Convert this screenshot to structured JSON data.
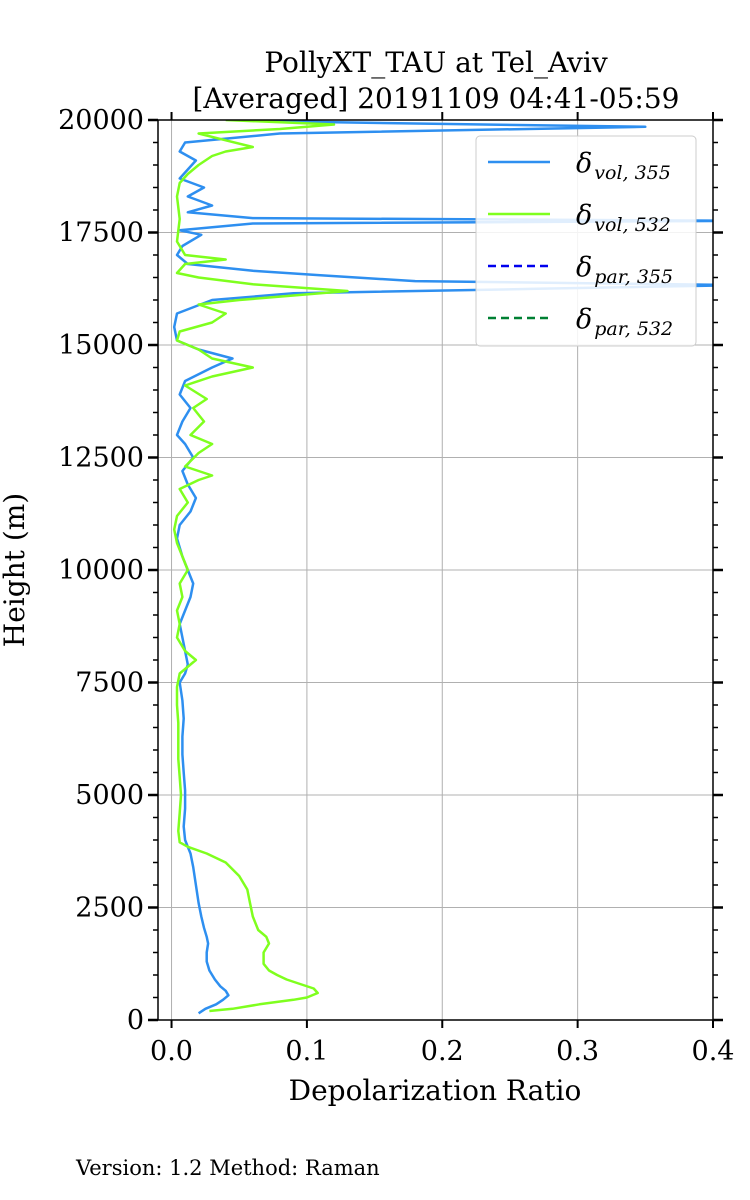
{
  "chart_data": {
    "type": "line",
    "title_line1": "PollyXT_TAU at Tel_Aviv",
    "title_line2": "[Averaged] 20191109 04:41-05:59",
    "xlabel": "Depolarization Ratio",
    "ylabel": "Height (m)",
    "xlim": [
      -0.01,
      0.4
    ],
    "ylim": [
      0,
      20000
    ],
    "xticks": [
      "0.0",
      "0.1",
      "0.2",
      "0.3",
      "0.4"
    ],
    "xtick_values": [
      0.0,
      0.1,
      0.2,
      0.3,
      0.4
    ],
    "yticks": [
      "0",
      "2500",
      "5000",
      "7500",
      "10000",
      "12500",
      "15000",
      "17500",
      "20000"
    ],
    "ytick_values": [
      0,
      2500,
      5000,
      7500,
      10000,
      12500,
      15000,
      17500,
      20000
    ],
    "grid": true,
    "legend_position": "top-right",
    "series": [
      {
        "name": "δvol,355",
        "name_main": "δ",
        "name_sub": "vol, 355",
        "color": "#2e8ff0",
        "dash": "solid",
        "points": [
          [
            0.02,
            150
          ],
          [
            0.025,
            250
          ],
          [
            0.033,
            350
          ],
          [
            0.038,
            450
          ],
          [
            0.042,
            550
          ],
          [
            0.04,
            650
          ],
          [
            0.036,
            750
          ],
          [
            0.032,
            900
          ],
          [
            0.028,
            1100
          ],
          [
            0.026,
            1300
          ],
          [
            0.026,
            1500
          ],
          [
            0.027,
            1700
          ],
          [
            0.026,
            1850
          ],
          [
            0.024,
            2050
          ],
          [
            0.022,
            2300
          ],
          [
            0.02,
            2600
          ],
          [
            0.018,
            3000
          ],
          [
            0.016,
            3400
          ],
          [
            0.014,
            3700
          ],
          [
            0.012,
            3850
          ],
          [
            0.01,
            4000
          ],
          [
            0.009,
            4300
          ],
          [
            0.01,
            4700
          ],
          [
            0.01,
            5100
          ],
          [
            0.009,
            5500
          ],
          [
            0.008,
            5900
          ],
          [
            0.008,
            6300
          ],
          [
            0.009,
            6700
          ],
          [
            0.008,
            7100
          ],
          [
            0.006,
            7500
          ],
          [
            0.01,
            7700
          ],
          [
            0.012,
            7900
          ],
          [
            0.01,
            8200
          ],
          [
            0.008,
            8500
          ],
          [
            0.006,
            8800
          ],
          [
            0.01,
            9100
          ],
          [
            0.014,
            9400
          ],
          [
            0.016,
            9700
          ],
          [
            0.012,
            10000
          ],
          [
            0.008,
            10300
          ],
          [
            0.004,
            10700
          ],
          [
            0.006,
            11000
          ],
          [
            0.014,
            11300
          ],
          [
            0.018,
            11600
          ],
          [
            0.012,
            11900
          ],
          [
            0.008,
            12200
          ],
          [
            0.016,
            12500
          ],
          [
            0.01,
            12800
          ],
          [
            0.004,
            13000
          ],
          [
            0.008,
            13300
          ],
          [
            0.014,
            13600
          ],
          [
            0.006,
            13900
          ],
          [
            0.01,
            14200
          ],
          [
            0.03,
            14500
          ],
          [
            0.045,
            14700
          ],
          [
            0.02,
            14900
          ],
          [
            0.004,
            15100
          ],
          [
            0.002,
            15400
          ],
          [
            0.004,
            15700
          ],
          [
            0.03,
            16000
          ],
          [
            0.09,
            16150
          ],
          [
            0.27,
            16250
          ],
          [
            0.42,
            16330
          ],
          [
            0.18,
            16420
          ],
          [
            0.11,
            16550
          ],
          [
            0.06,
            16650
          ],
          [
            0.012,
            16800
          ],
          [
            0.004,
            17000
          ],
          [
            0.008,
            17200
          ],
          [
            0.022,
            17450
          ],
          [
            0.006,
            17550
          ],
          [
            0.06,
            17700
          ],
          [
            0.42,
            17760
          ],
          [
            0.06,
            17820
          ],
          [
            0.012,
            17950
          ],
          [
            0.03,
            18100
          ],
          [
            0.012,
            18300
          ],
          [
            0.024,
            18500
          ],
          [
            0.006,
            18700
          ],
          [
            0.012,
            18900
          ],
          [
            0.018,
            19100
          ],
          [
            0.006,
            19300
          ],
          [
            0.01,
            19500
          ],
          [
            0.08,
            19700
          ],
          [
            0.35,
            19850
          ],
          [
            0.12,
            19950
          ],
          [
            0.05,
            20000
          ]
        ]
      },
      {
        "name": "δvol,532",
        "name_main": "δ",
        "name_sub": "vol, 532",
        "color": "#7fff1e",
        "dash": "solid",
        "points": [
          [
            0.028,
            200
          ],
          [
            0.045,
            250
          ],
          [
            0.065,
            350
          ],
          [
            0.09,
            450
          ],
          [
            0.1,
            500
          ],
          [
            0.108,
            600
          ],
          [
            0.105,
            700
          ],
          [
            0.095,
            800
          ],
          [
            0.085,
            900
          ],
          [
            0.078,
            1000
          ],
          [
            0.072,
            1100
          ],
          [
            0.068,
            1250
          ],
          [
            0.068,
            1500
          ],
          [
            0.072,
            1700
          ],
          [
            0.07,
            1850
          ],
          [
            0.064,
            2000
          ],
          [
            0.06,
            2300
          ],
          [
            0.058,
            2600
          ],
          [
            0.056,
            2900
          ],
          [
            0.05,
            3200
          ],
          [
            0.04,
            3500
          ],
          [
            0.026,
            3700
          ],
          [
            0.012,
            3850
          ],
          [
            0.006,
            3950
          ],
          [
            0.005,
            4200
          ],
          [
            0.006,
            4600
          ],
          [
            0.007,
            5000
          ],
          [
            0.006,
            5400
          ],
          [
            0.005,
            5800
          ],
          [
            0.005,
            6200
          ],
          [
            0.005,
            6600
          ],
          [
            0.004,
            7000
          ],
          [
            0.004,
            7400
          ],
          [
            0.006,
            7700
          ],
          [
            0.014,
            7900
          ],
          [
            0.018,
            8000
          ],
          [
            0.01,
            8200
          ],
          [
            0.004,
            8500
          ],
          [
            0.006,
            8800
          ],
          [
            0.004,
            9100
          ],
          [
            0.008,
            9400
          ],
          [
            0.006,
            9700
          ],
          [
            0.012,
            10000
          ],
          [
            0.008,
            10300
          ],
          [
            0.004,
            10600
          ],
          [
            0.002,
            10900
          ],
          [
            0.004,
            11200
          ],
          [
            0.012,
            11500
          ],
          [
            0.006,
            11800
          ],
          [
            0.02,
            12000
          ],
          [
            0.03,
            12100
          ],
          [
            0.01,
            12300
          ],
          [
            0.02,
            12600
          ],
          [
            0.03,
            12800
          ],
          [
            0.014,
            13000
          ],
          [
            0.024,
            13300
          ],
          [
            0.016,
            13600
          ],
          [
            0.026,
            13800
          ],
          [
            0.01,
            14100
          ],
          [
            0.03,
            14300
          ],
          [
            0.06,
            14500
          ],
          [
            0.03,
            14700
          ],
          [
            0.02,
            14900
          ],
          [
            0.004,
            15100
          ],
          [
            0.006,
            15300
          ],
          [
            0.03,
            15500
          ],
          [
            0.04,
            15700
          ],
          [
            0.02,
            15900
          ],
          [
            0.05,
            16000
          ],
          [
            0.09,
            16100
          ],
          [
            0.13,
            16200
          ],
          [
            0.06,
            16350
          ],
          [
            0.02,
            16500
          ],
          [
            0.004,
            16600
          ],
          [
            0.01,
            16800
          ],
          [
            0.04,
            16900
          ],
          [
            0.01,
            17000
          ],
          [
            0.004,
            17300
          ],
          [
            0.006,
            17800
          ],
          [
            0.004,
            18300
          ],
          [
            0.006,
            18600
          ],
          [
            0.012,
            18800
          ],
          [
            0.02,
            19000
          ],
          [
            0.03,
            19200
          ],
          [
            0.04,
            19300
          ],
          [
            0.06,
            19400
          ],
          [
            0.04,
            19550
          ],
          [
            0.02,
            19700
          ],
          [
            0.08,
            19800
          ],
          [
            0.12,
            19900
          ],
          [
            0.04,
            20000
          ]
        ]
      },
      {
        "name": "δpar,355",
        "name_main": "δ",
        "name_sub": "par, 355",
        "color": "#0000ee",
        "dash": "dashed",
        "points": []
      },
      {
        "name": "δpar,532",
        "name_main": "δ",
        "name_sub": "par, 532",
        "color": "#008033",
        "dash": "dashed",
        "points": []
      }
    ]
  },
  "footer": {
    "text": "Version: 1.2  Method: Raman"
  }
}
